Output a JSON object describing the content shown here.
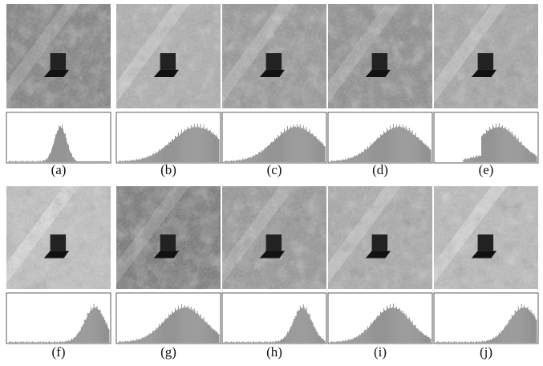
{
  "panels": [
    {
      "label": "(a)"
    },
    {
      "label": "(b)"
    },
    {
      "label": "(c)"
    },
    {
      "label": "(d)"
    },
    {
      "label": "(e)"
    },
    {
      "label": "(f)"
    },
    {
      "label": "(g)"
    },
    {
      "label": "(h)"
    },
    {
      "label": "(i)"
    },
    {
      "label": "(j)"
    }
  ]
}
